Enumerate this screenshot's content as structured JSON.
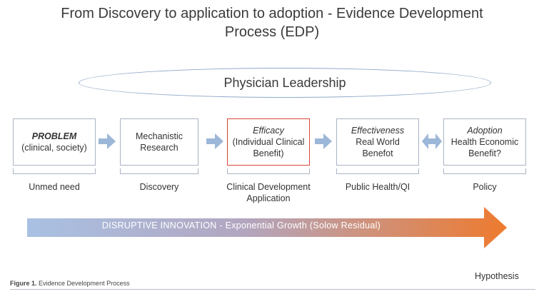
{
  "title": {
    "line1": "From Discovery to application to adoption - Evidence Development",
    "line2": "Process (EDP)"
  },
  "leadership": "Physician Leadership",
  "boxes": [
    {
      "line1": "PROBLEM",
      "line2": "(clinical, society)",
      "line3": ""
    },
    {
      "line1": "Mechanistic",
      "line2": "Research",
      "line3": ""
    },
    {
      "line1": "Efficacy",
      "line2": "(Individual Clinical",
      "line3": "Benefit)"
    },
    {
      "line1": "Effectiveness",
      "line2": "Real World",
      "line3": "Benefot"
    },
    {
      "line1": "Adoption",
      "line2": "Health Economic",
      "line3": "Benefit?"
    }
  ],
  "stages": [
    {
      "line1": "Unmed need",
      "line2": ""
    },
    {
      "line1": "Discovery",
      "line2": ""
    },
    {
      "line1": "Clinical Development",
      "line2": "Application"
    },
    {
      "line1": "Public Health/QI",
      "line2": ""
    },
    {
      "line1": "Policy",
      "line2": ""
    }
  ],
  "innovation_arrow": "DISRUPTIVE INNOVATION - Exponential Growth (Solow Residual)",
  "hypothesis": "Hypothesis",
  "caption": {
    "label": "Figure 1.",
    "text": " Evidence Development Process"
  },
  "colors": {
    "box_border": "#aab4c4",
    "highlight_border": "#d9463b",
    "small_arrow": "#9db7d8",
    "gradient_start": "#a9c1e3",
    "gradient_end": "#ee7a2e"
  }
}
